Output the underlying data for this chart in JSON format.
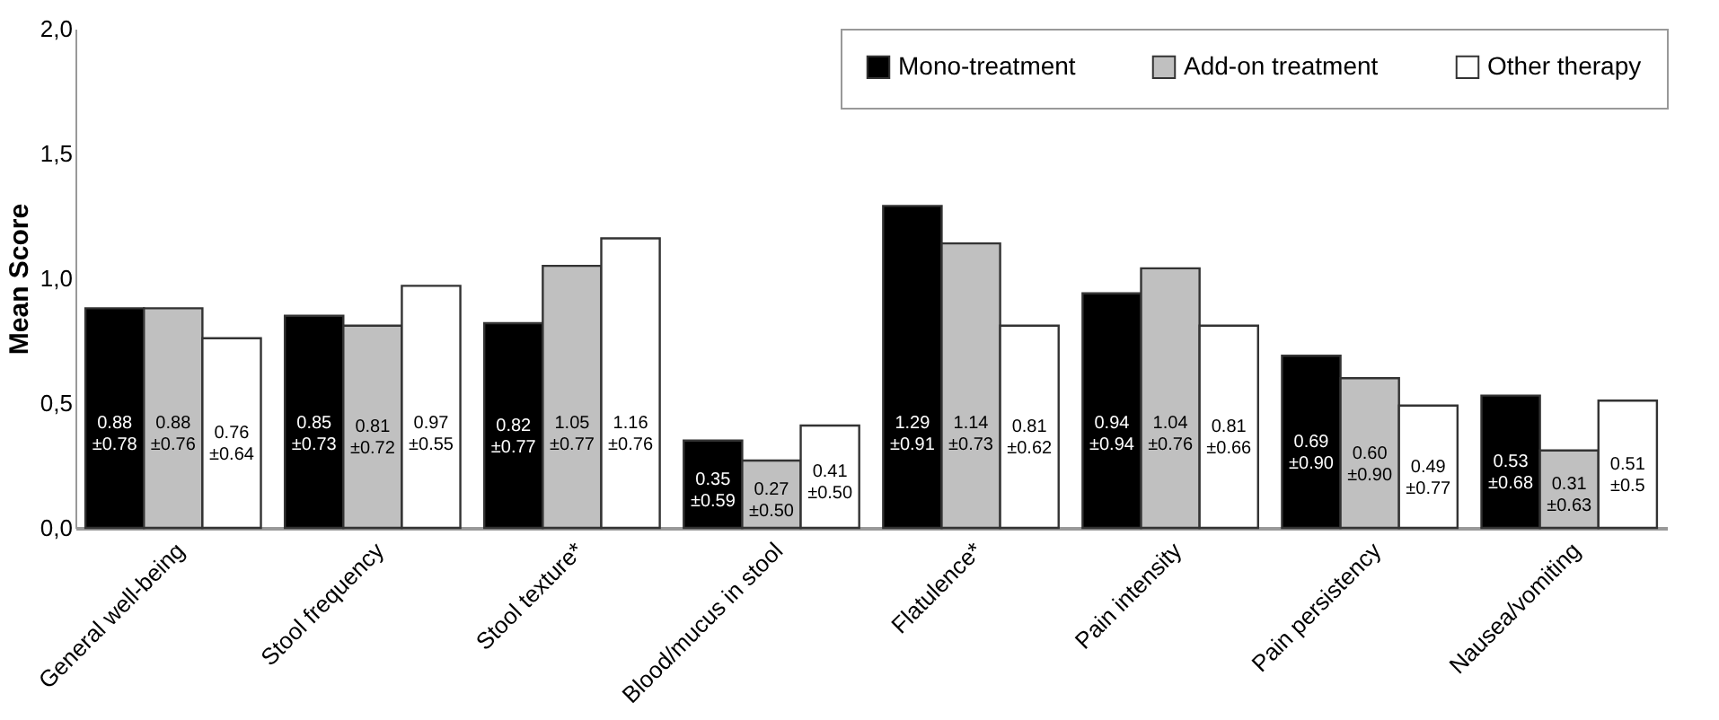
{
  "chart_data": {
    "type": "bar",
    "ylabel": "Mean Score",
    "categories": [
      "General well-being",
      "Stool frequency",
      "Stool texture*",
      "Blood/mucus in stool",
      "Flatulence*",
      "Pain intensity",
      "Pain persistency",
      "Nausea/vomiting"
    ],
    "series": [
      {
        "name": "Mono-treatment",
        "color": "#000000",
        "values": [
          0.88,
          0.85,
          0.82,
          0.35,
          1.29,
          0.94,
          0.69,
          0.53
        ],
        "value_labels": [
          "0.88\n±0.78",
          "0.85\n±0.73",
          "0.82\n±0.77",
          "0.35\n±0.59",
          "1.29\n±0.91",
          "0.94\n±0.94",
          "0.69\n±0.90",
          "0.53\n±0.68"
        ]
      },
      {
        "name": "Add-on treatment",
        "color": "#c0c0c0",
        "values": [
          0.88,
          0.81,
          1.05,
          0.27,
          1.14,
          1.04,
          0.6,
          0.31
        ],
        "value_labels": [
          "0.88\n±0.76",
          "0.81\n±0.72",
          "1.05\n±0.77",
          "0.27\n±0.50",
          "1.14\n±0.73",
          "1.04\n±0.76",
          "0.60\n±0.90",
          "0.31\n±0.63"
        ]
      },
      {
        "name": "Other therapy",
        "color": "#ffffff",
        "values": [
          0.76,
          0.97,
          1.16,
          0.41,
          0.81,
          0.81,
          0.49,
          0.51
        ],
        "value_labels": [
          "0.76\n±0.64",
          "0.97\n±0.55",
          "1.16\n±0.76",
          "0.41\n±0.50",
          "0.81\n±0.62",
          "0.81\n±0.66",
          "0.49\n±0.77",
          "0.51\n±0.5"
        ]
      }
    ],
    "ylim": [
      0,
      2
    ],
    "yticks": [
      {
        "value": 0,
        "label": "0,0"
      },
      {
        "value": 0.5,
        "label": "0,5"
      },
      {
        "value": 1,
        "label": "1,0"
      },
      {
        "value": 1.5,
        "label": "1,5"
      },
      {
        "value": 2,
        "label": "2,0"
      }
    ],
    "grid": false,
    "legend": "top right"
  }
}
